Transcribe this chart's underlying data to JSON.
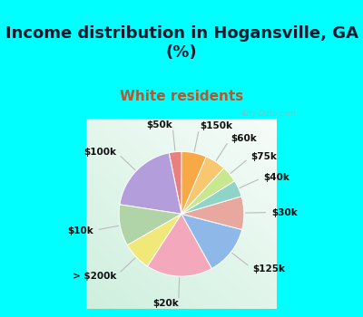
{
  "title": "Income distribution in Hogansville, GA\n(%)",
  "subtitle": "White residents",
  "title_fontsize": 13,
  "subtitle_fontsize": 11,
  "subtitle_color": "#b05a2f",
  "bg_cyan": "#00ffff",
  "watermark": "City-Data.com",
  "labels": [
    "$50k",
    "$100k",
    "$10k",
    "> $200k",
    "$20k",
    "$125k",
    "$30k",
    "$40k",
    "$75k",
    "$60k",
    "$150k"
  ],
  "sizes": [
    3,
    18,
    10,
    7,
    16,
    12,
    8,
    4,
    4,
    5,
    6
  ],
  "colors": [
    "#e88080",
    "#b39ddb",
    "#b0d4a8",
    "#f0e878",
    "#f4a8bc",
    "#8eb8e8",
    "#e8a8a0",
    "#90d4c8",
    "#c8e890",
    "#f8c870",
    "#f8a844"
  ],
  "label_fontsize": 7.5,
  "startangle": 90,
  "fig_width": 4.0,
  "fig_height": 3.5,
  "dpi": 100
}
